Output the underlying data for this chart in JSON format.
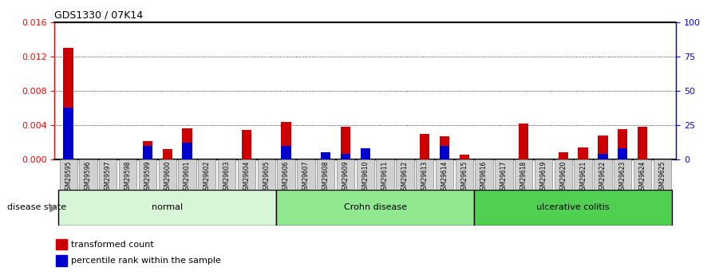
{
  "title": "GDS1330 / 07K14",
  "samples": [
    "GSM29595",
    "GSM29596",
    "GSM29597",
    "GSM29598",
    "GSM29599",
    "GSM29600",
    "GSM29601",
    "GSM29602",
    "GSM29603",
    "GSM29604",
    "GSM29605",
    "GSM29606",
    "GSM29607",
    "GSM29608",
    "GSM29609",
    "GSM29610",
    "GSM29611",
    "GSM29612",
    "GSM29613",
    "GSM29614",
    "GSM29615",
    "GSM29616",
    "GSM29617",
    "GSM29618",
    "GSM29619",
    "GSM29620",
    "GSM29621",
    "GSM29622",
    "GSM29623",
    "GSM29624",
    "GSM29625"
  ],
  "transformed_count": [
    0.013,
    0.0,
    0.0,
    0.0,
    0.0021,
    0.0012,
    0.0036,
    0.0,
    0.0,
    0.0034,
    0.0,
    0.0044,
    0.0,
    0.0,
    0.0038,
    0.0,
    0.0,
    0.0,
    0.003,
    0.0027,
    0.0006,
    0.0,
    0.0,
    0.0042,
    0.0,
    0.0008,
    0.0014,
    0.0028,
    0.0035,
    0.0038,
    0.0
  ],
  "percentile_rank_pct": [
    38,
    0,
    0,
    0,
    10,
    0,
    12,
    0,
    0,
    0,
    0,
    10,
    0,
    5,
    4,
    8,
    0,
    0,
    0,
    10,
    0,
    0,
    0,
    0,
    0,
    0,
    0,
    4,
    8,
    0,
    0
  ],
  "groups": [
    {
      "label": "normal",
      "start": 0,
      "end": 10,
      "color": "#d8f5d8"
    },
    {
      "label": "Crohn disease",
      "start": 11,
      "end": 20,
      "color": "#90e890"
    },
    {
      "label": "ulcerative colitis",
      "start": 21,
      "end": 30,
      "color": "#50d050"
    }
  ],
  "ylim_left": [
    0,
    0.016
  ],
  "ylim_right": [
    0,
    100
  ],
  "yticks_left": [
    0,
    0.004,
    0.008,
    0.012,
    0.016
  ],
  "yticks_right": [
    0,
    25,
    50,
    75,
    100
  ],
  "bar_color_red": "#cc0000",
  "bar_color_blue": "#0000cc",
  "background_color": "#ffffff",
  "plot_bg_color": "#ffffff",
  "disease_state_label": "disease state",
  "legend_red": "transformed count",
  "legend_blue": "percentile rank within the sample"
}
